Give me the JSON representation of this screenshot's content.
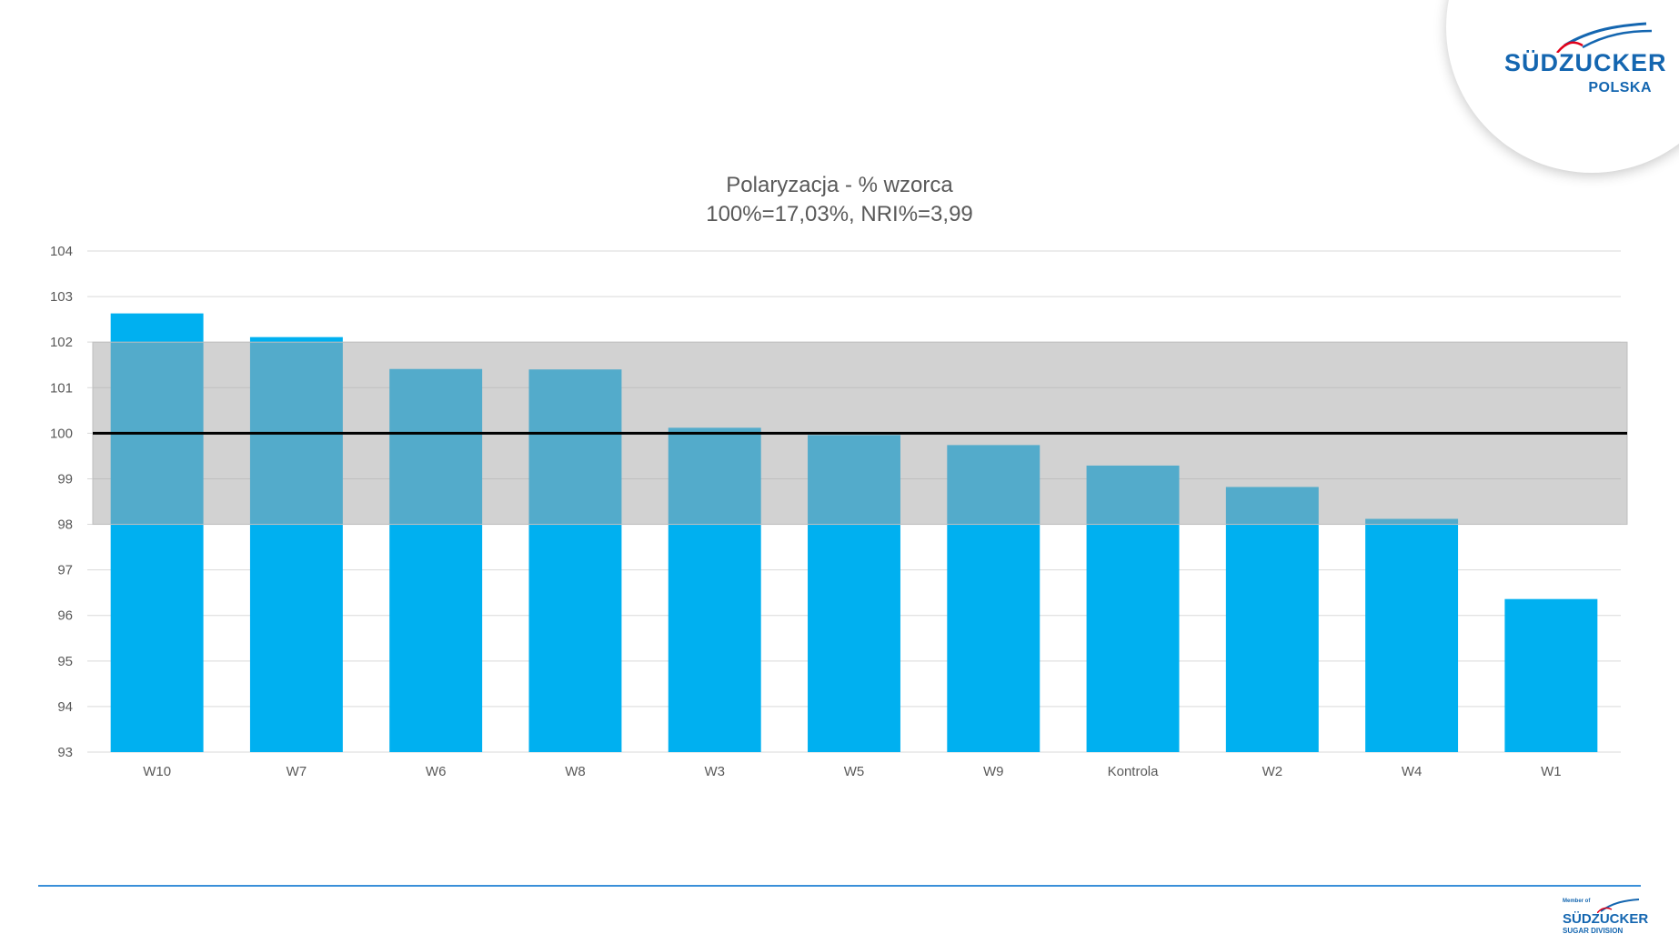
{
  "logo": {
    "brand": "SÜDZUCKER",
    "sub": "POLSKA",
    "color": "#1466b0",
    "accent": "#e2001a"
  },
  "footer_logo": {
    "member": "Member of",
    "brand": "SÜDZUCKER",
    "sub": "SUGAR DIVISION"
  },
  "chart_data": {
    "type": "bar",
    "title": "Polaryzacja - % wzorca",
    "subtitle": "100%=17,03%, NRI%=3,99",
    "categories": [
      "W10",
      "W7",
      "W6",
      "W8",
      "W3",
      "W5",
      "W9",
      "Kontrola",
      "W2",
      "W4",
      "W1"
    ],
    "values": [
      102.63,
      102.11,
      101.41,
      101.4,
      100.12,
      99.96,
      99.74,
      99.29,
      98.82,
      98.12,
      96.36
    ],
    "ylim": [
      93,
      104
    ],
    "yticks": [
      "93",
      "94",
      "95",
      "96",
      "97",
      "98",
      "99",
      "100",
      "101",
      "102",
      "103",
      "104"
    ],
    "reference_line": 100,
    "tolerance_band": [
      98,
      102
    ],
    "grid": true,
    "colors": {
      "bar": "#00b0f0",
      "band": "#a6a6a6",
      "reference": "#000000",
      "grid": "#d9d9d9",
      "tick": "#595959"
    }
  }
}
